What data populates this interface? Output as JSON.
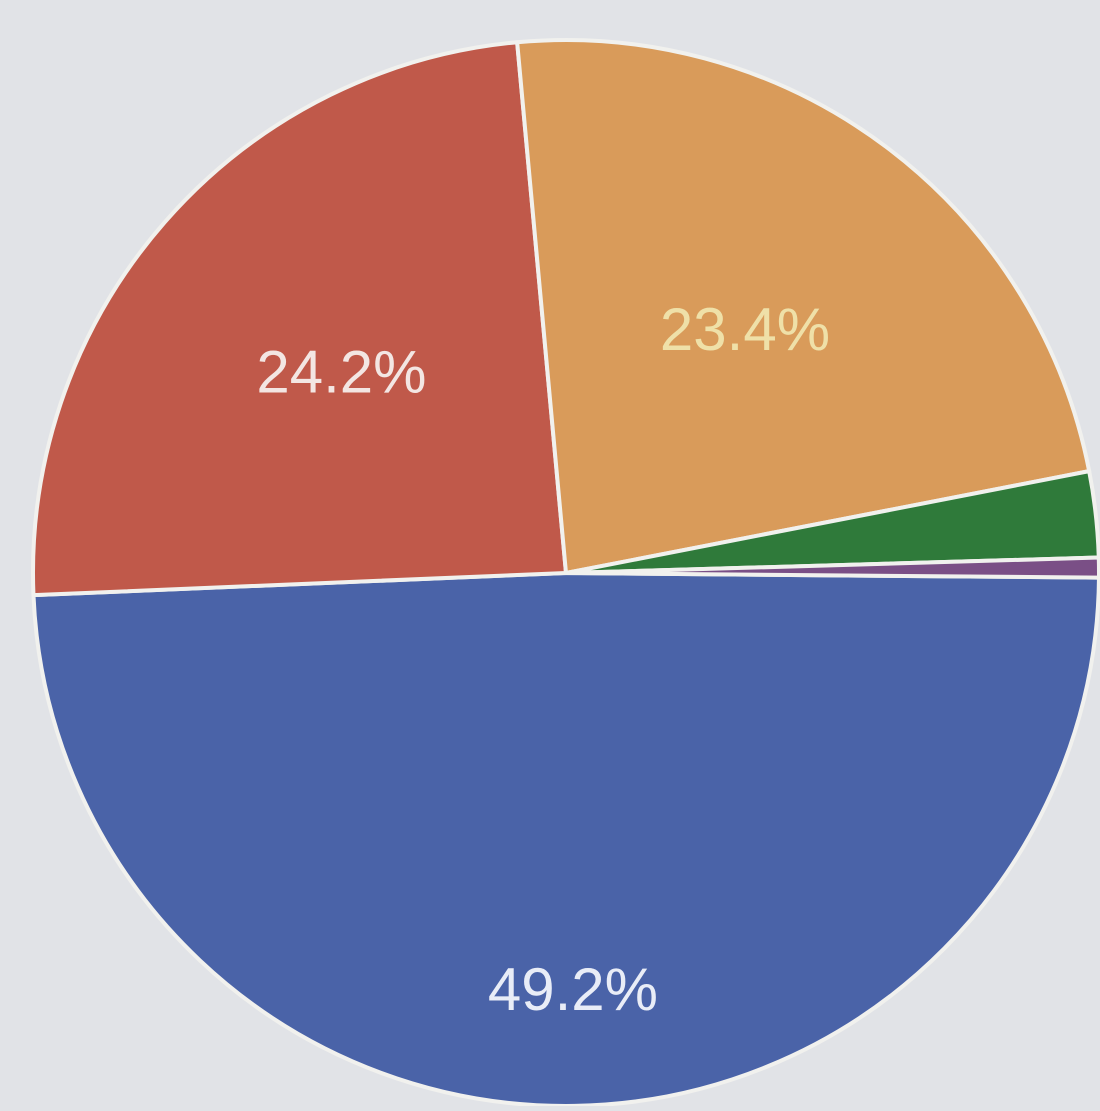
{
  "chart_data": {
    "type": "pie",
    "categories": [
      "",
      "",
      "",
      "",
      ""
    ],
    "values": [
      49.2,
      24.2,
      23.4,
      2.6,
      0.6
    ],
    "data_labels": [
      "49.2%",
      "24.2%",
      "23.4%",
      "",
      ""
    ],
    "colors": [
      "#4a63a8",
      "#c0594a",
      "#d99b5a",
      "#2f7a3a",
      "#7a4f86"
    ],
    "label_colors": [
      "#e9edf7",
      "#f3e6e3",
      "#efe0a8",
      "#ffffff",
      "#ffffff"
    ],
    "separator_color": "#f1f1ee",
    "title": "",
    "legend": "none"
  }
}
